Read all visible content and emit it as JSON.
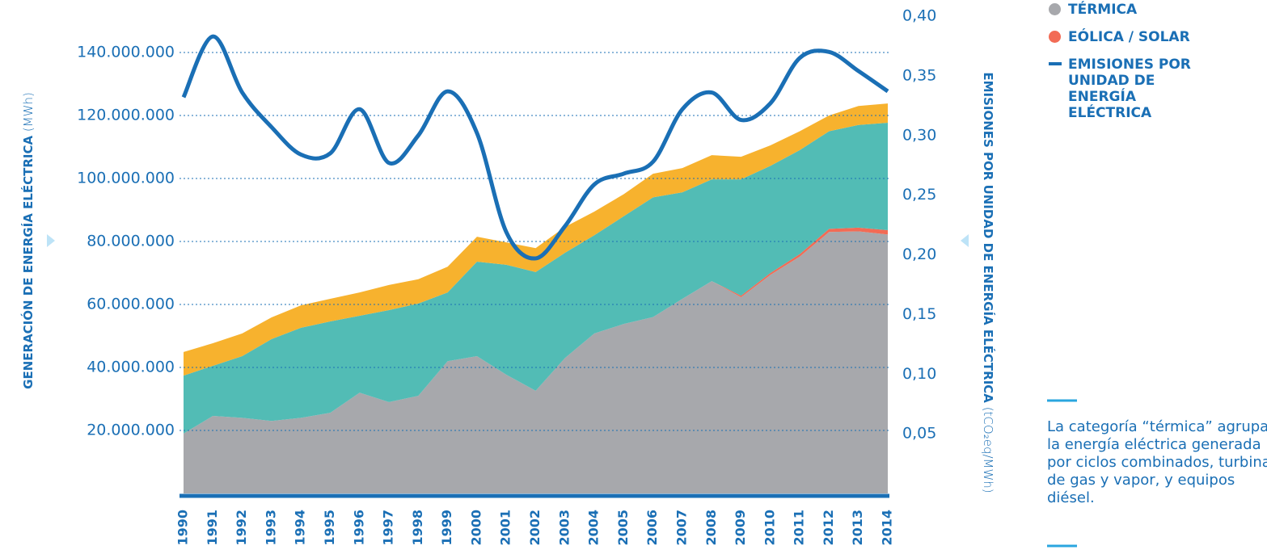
{
  "chart_data": {
    "type": "stacked_area_line",
    "y_label": "GENERACIÓN DE ENERGÍA ELÉCTRICA",
    "y_unit": "(MWh)",
    "y2_label": "EMISIONES POR UNIDAD DE ENERGÍA ELÉCTRICA",
    "y2_unit": "(tCO₂eq/MWh)",
    "note": "La categoría “térmica” agrupa la energía eléctrica generada por ciclos combinados, turbinas de gas y vapor, y equipos diésel.",
    "categories": [
      "1990",
      "1991",
      "1992",
      "1993",
      "1994",
      "1995",
      "1996",
      "1997",
      "1998",
      "1999",
      "2000",
      "2001",
      "2002",
      "2003",
      "2004",
      "2005",
      "2006",
      "2007",
      "2008",
      "2009",
      "2010",
      "2011",
      "2012",
      "2013",
      "2014"
    ],
    "series": [
      {
        "name": "TÉRMICA",
        "color": "#a7a8ac",
        "values": [
          19000000,
          24600000,
          24000000,
          23000000,
          24000000,
          25600000,
          32000000,
          29000000,
          31000000,
          42000000,
          43600000,
          37700000,
          32600000,
          43000000,
          50800000,
          53800000,
          56000000,
          61800000,
          67400000,
          62300000,
          69400000,
          75200000,
          83000000,
          83200000,
          82200000
        ]
      },
      {
        "name": "EÓLICA / SOLAR",
        "color": "#f26b55",
        "values": [
          0,
          0,
          0,
          0,
          0,
          0,
          0,
          0,
          0,
          0,
          0,
          0,
          0,
          0,
          0,
          0,
          0,
          0,
          0,
          500000,
          600000,
          800000,
          1000000,
          1200000,
          1400000
        ]
      },
      {
        "color": "#52bcb5",
        "values": [
          18400000,
          15900000,
          19600000,
          26000000,
          28600000,
          29000000,
          24400000,
          29200000,
          29300000,
          21800000,
          30000000,
          34900000,
          37700000,
          33400000,
          31200000,
          34200000,
          38000000,
          33800000,
          32300000,
          36900000,
          34000000,
          33000000,
          31000000,
          32600000,
          34100000
        ]
      },
      {
        "color": "#f7b22e",
        "values": [
          7500000,
          7200000,
          7200000,
          6900000,
          7100000,
          7200000,
          7400000,
          8000000,
          7700000,
          8200000,
          7900000,
          7100000,
          7600000,
          8200000,
          7500000,
          7000000,
          7500000,
          7700000,
          7700000,
          7200000,
          6500000,
          6000000,
          5000000,
          6000000,
          6100000
        ]
      },
      {
        "name": "EMISIONES POR UNIDAD DE ENERGÍA ELÉCTRICA",
        "color": "#1a6fb5",
        "axis": "y2",
        "values": [
          0.332,
          0.383,
          0.336,
          0.307,
          0.284,
          0.285,
          0.322,
          0.277,
          0.3,
          0.337,
          0.302,
          0.219,
          0.197,
          0.224,
          0.259,
          0.268,
          0.278,
          0.322,
          0.336,
          0.313,
          0.327,
          0.365,
          0.37,
          0.354,
          0.337
        ]
      }
    ],
    "ylim": [
      0,
      150000000
    ],
    "yticks": [
      {
        "value": 20000000,
        "label": "20.000.000"
      },
      {
        "value": 40000000,
        "label": "40.000.000"
      },
      {
        "value": 60000000,
        "label": "60.000.000"
      },
      {
        "value": 80000000,
        "label": "80.000.000"
      },
      {
        "value": 100000000,
        "label": "100.000.000"
      },
      {
        "value": 120000000,
        "label": "120.000.000"
      },
      {
        "value": 140000000,
        "label": "140.000.000"
      }
    ],
    "y2lim": [
      0,
      0.4
    ],
    "y2ticks": [
      {
        "value": 0.05,
        "label": "0,05"
      },
      {
        "value": 0.1,
        "label": "0,10"
      },
      {
        "value": 0.15,
        "label": "0,15"
      },
      {
        "value": 0.2,
        "label": "0,20"
      },
      {
        "value": 0.25,
        "label": "0,25"
      },
      {
        "value": 0.3,
        "label": "0,30"
      },
      {
        "value": 0.35,
        "label": "0,35"
      },
      {
        "value": 0.4,
        "label": "0,40"
      }
    ],
    "grid": true
  }
}
